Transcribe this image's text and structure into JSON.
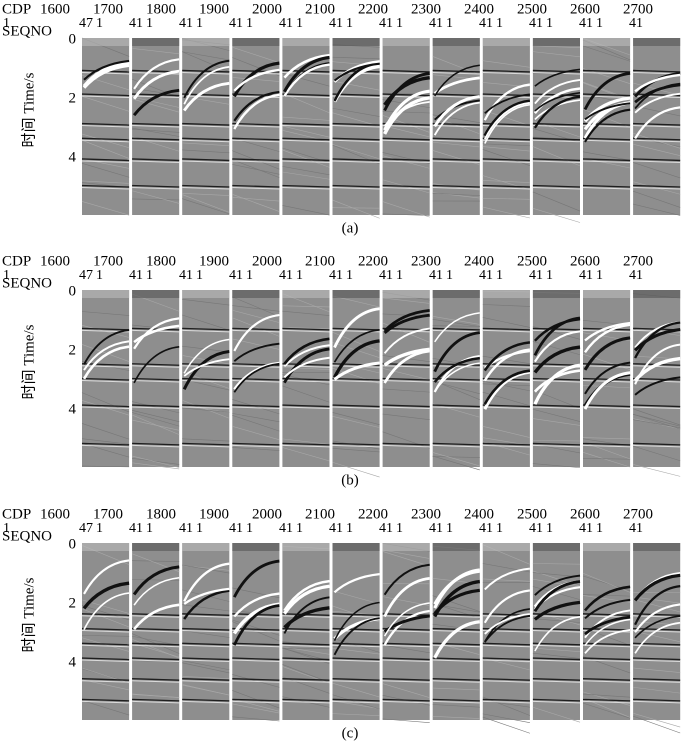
{
  "panels": [
    {
      "cdp_label": "CDP",
      "cdp": [
        "1600",
        "1700",
        "1800",
        "1900",
        "2000",
        "2100",
        "2200",
        "2300",
        "2400",
        "2500",
        "2600",
        "2700"
      ],
      "seqno_label": "SEQNO",
      "seqno": [
        [
          "1",
          "47"
        ],
        [
          "1",
          "41"
        ],
        [
          "1",
          "41"
        ],
        [
          "1",
          "41"
        ],
        [
          "1",
          "41"
        ],
        [
          "1",
          "41"
        ],
        [
          "1",
          "41"
        ],
        [
          "1",
          "41"
        ],
        [
          "1",
          "41"
        ],
        [
          "1",
          "41"
        ],
        [
          "1",
          "41"
        ],
        [
          "1",
          "41"
        ]
      ],
      "y_label": "时间 Time/s",
      "time_ticks": [
        0,
        2,
        4
      ],
      "caption": "(a)"
    },
    {
      "cdp_label": "CDP",
      "cdp": [
        "1600",
        "1700",
        "1800",
        "1900",
        "2000",
        "2100",
        "2200",
        "2300",
        "2400",
        "2500",
        "2600",
        "2700"
      ],
      "seqno_label": "SEQNO",
      "seqno": [
        [
          "1",
          "47"
        ],
        [
          "1",
          "41"
        ],
        [
          "1",
          "41"
        ],
        [
          "1",
          "41"
        ],
        [
          "1",
          "41"
        ],
        [
          "1",
          "41"
        ],
        [
          "1",
          "41"
        ],
        [
          "1",
          "41"
        ],
        [
          "1",
          "41"
        ],
        [
          "1",
          "41"
        ],
        [
          "1",
          "41"
        ],
        [
          "1",
          "41"
        ]
      ],
      "y_label": "时间 Time/s",
      "time_ticks": [
        0,
        2,
        4
      ],
      "caption": "(b)"
    },
    {
      "cdp_label": "CDP",
      "cdp": [
        "1600",
        "1700",
        "1800",
        "1900",
        "2000",
        "2100",
        "2200",
        "2300",
        "2400",
        "2500",
        "2600",
        "2700"
      ],
      "seqno_label": "SEQNO",
      "seqno": [
        [
          "1",
          "47"
        ],
        [
          "1",
          "41"
        ],
        [
          "1",
          "41"
        ],
        [
          "1",
          "41"
        ],
        [
          "1",
          "41"
        ],
        [
          "1",
          "41"
        ],
        [
          "1",
          "41"
        ],
        [
          "1",
          "41"
        ],
        [
          "1",
          "41"
        ],
        [
          "1",
          "41"
        ],
        [
          "1",
          "41"
        ],
        [
          "1",
          "41"
        ]
      ],
      "y_label": "时间 Time/s",
      "time_ticks": [
        0,
        2,
        4
      ],
      "caption": "(c)"
    }
  ]
}
